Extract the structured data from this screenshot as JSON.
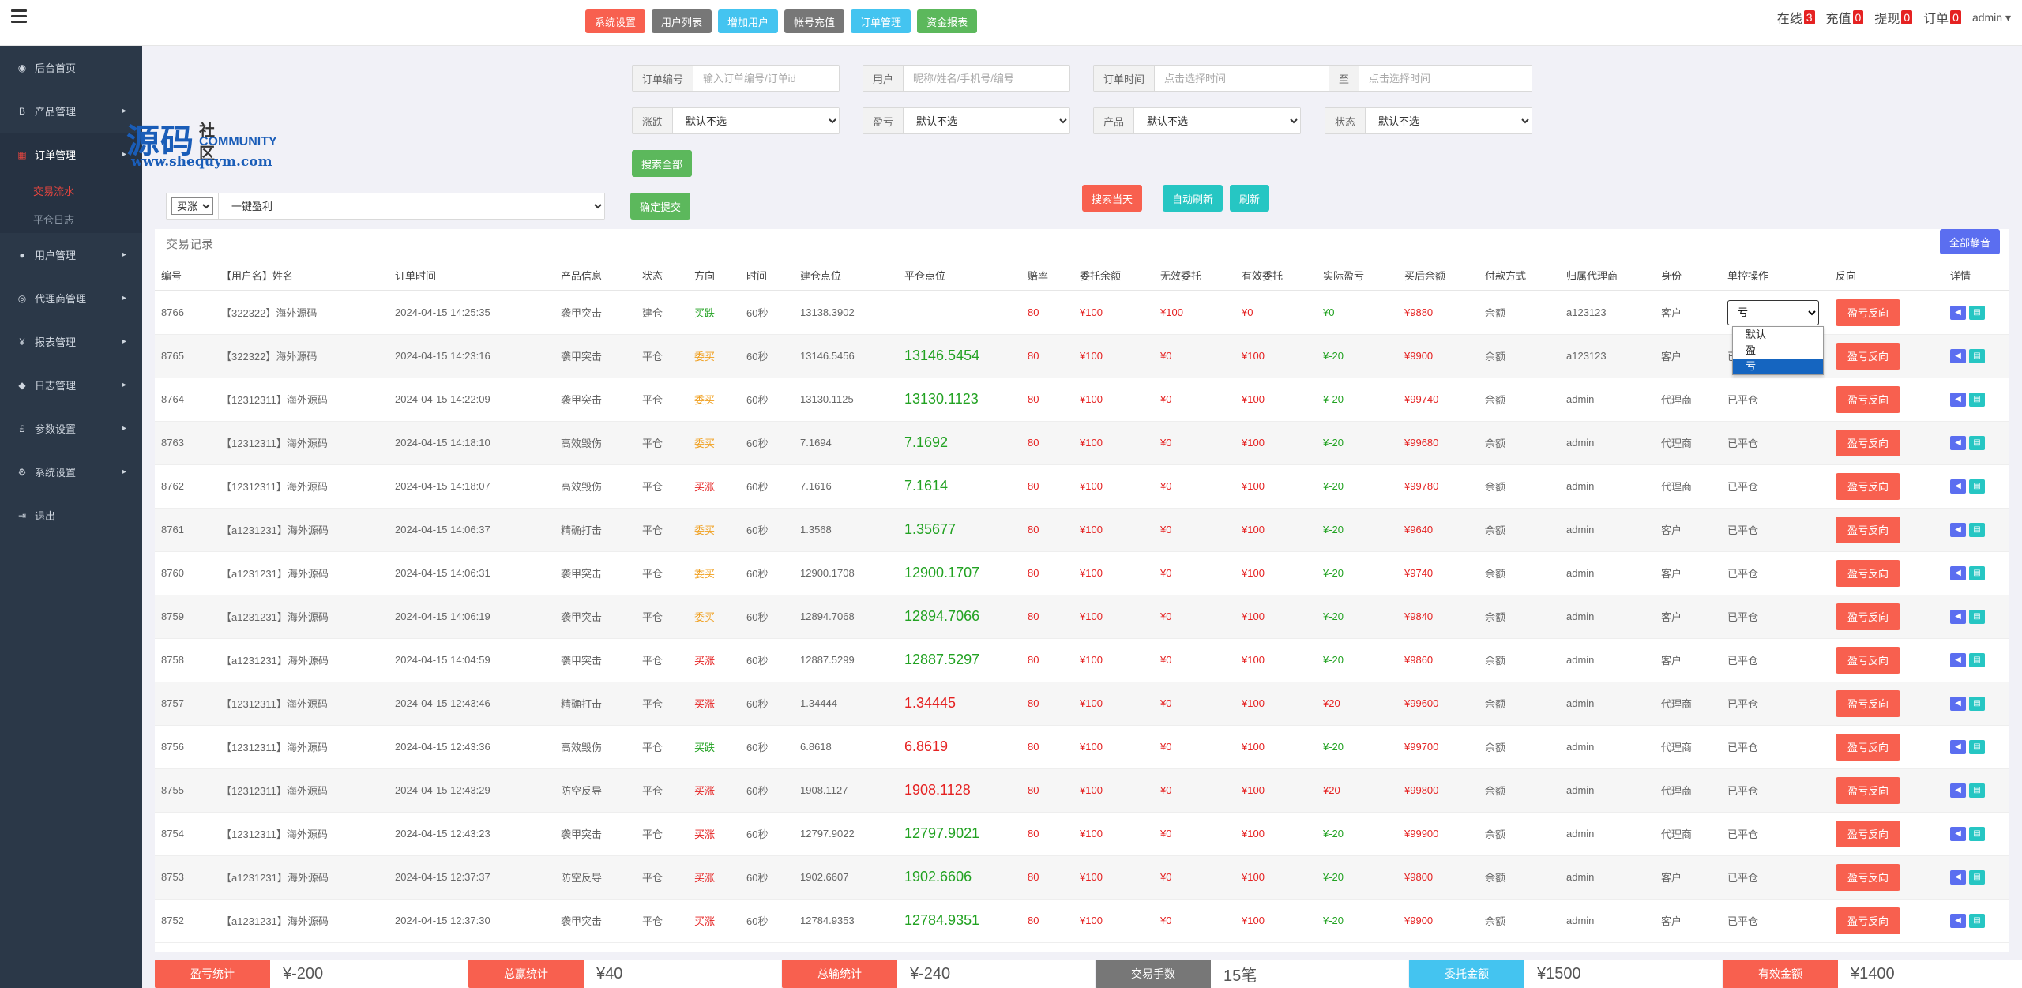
{
  "topnav": [
    {
      "label": "系统设置",
      "color": "#f8604f"
    },
    {
      "label": "用户列表",
      "color": "#777777"
    },
    {
      "label": "增加用户",
      "color": "#44c4f0"
    },
    {
      "label": "帐号充值",
      "color": "#777777"
    },
    {
      "label": "订单管理",
      "color": "#44c4f0"
    },
    {
      "label": "资金报表",
      "color": "#5cb85c"
    }
  ],
  "stats": [
    {
      "label": "在线",
      "count": "3"
    },
    {
      "label": "充值",
      "count": "0"
    },
    {
      "label": "提现",
      "count": "0"
    },
    {
      "label": "订单",
      "count": "0"
    }
  ],
  "user": "admin",
  "sidebar": {
    "items": [
      {
        "label": "后台首页",
        "icon": "dashboard-icon",
        "glyph": "◉",
        "chev": false
      },
      {
        "label": "产品管理",
        "icon": "bitcoin-icon",
        "glyph": "B",
        "chev": true
      },
      {
        "label": "订单管理",
        "icon": "orders-icon",
        "glyph": "▦",
        "chev": true,
        "active": true
      },
      {
        "label": "用户管理",
        "icon": "user-icon",
        "glyph": "●",
        "chev": true
      },
      {
        "label": "代理商管理",
        "icon": "agent-icon",
        "glyph": "◎",
        "chev": true
      },
      {
        "label": "报表管理",
        "icon": "yen-icon",
        "glyph": "¥",
        "chev": true
      },
      {
        "label": "日志管理",
        "icon": "tag-icon",
        "glyph": "◆",
        "chev": true
      },
      {
        "label": "参数设置",
        "icon": "pound-icon",
        "glyph": "£",
        "chev": true
      },
      {
        "label": "系统设置",
        "icon": "gears-icon",
        "glyph": "⚙",
        "chev": true
      },
      {
        "label": "退出",
        "icon": "logout-icon",
        "glyph": "⇥",
        "chev": false
      }
    ],
    "sub": [
      {
        "label": "交易流水",
        "current": true
      },
      {
        "label": "平仓日志",
        "current": false
      }
    ]
  },
  "watermark": {
    "big": "源码",
    "cn": "社区",
    "en": "COMMUNITY",
    "url": "www.shequym.com"
  },
  "filters": {
    "order_no": {
      "label": "订单编号",
      "placeholder": "输入订单编号/订单id"
    },
    "user": {
      "label": "用户",
      "placeholder": "昵称/姓名/手机号/编号"
    },
    "order_time": {
      "label": "订单时间",
      "placeholder": "点击选择时间"
    },
    "to": {
      "label": "至",
      "placeholder": "点击选择时间"
    },
    "rise_fall": {
      "label": "涨跌",
      "value": "默认不选"
    },
    "profit_loss": {
      "label": "盈亏",
      "value": "默认不选"
    },
    "product": {
      "label": "产品",
      "value": "默认不选"
    },
    "status": {
      "label": "状态",
      "value": "默认不选"
    },
    "search_all": "搜索全部",
    "search_today": "搜索当天",
    "auto_refresh": "自动刷新",
    "refresh": "刷新",
    "bulk_dir": "买涨",
    "bulk_action": "一键盈利",
    "confirm": "确定提交"
  },
  "panel": {
    "title": "交易记录",
    "mute_all": "全部静音",
    "columns": [
      "编号",
      "【用户名】姓名",
      "订单时间",
      "产品信息",
      "状态",
      "方向",
      "时间",
      "建仓点位",
      "平仓点位",
      "赔率",
      "委托余额",
      "无效委托",
      "有效委托",
      "实际盈亏",
      "买后余额",
      "付款方式",
      "归属代理商",
      "身份",
      "单控操作",
      "反向",
      "详情"
    ],
    "reverse_label": "盈亏反向",
    "rows": [
      {
        "id": "8766",
        "user": "【322322】海外源码",
        "time": "2024-04-15 14:25:35",
        "product": "袭甲突击",
        "status": "建仓",
        "dir": "买跌",
        "dirc": "c-green",
        "dur": "60秒",
        "open": "13138.3902",
        "close": "",
        "closec": "",
        "odds": "80",
        "entrust": "¥100",
        "invalid": "¥100",
        "valid": "¥0",
        "pnl": "¥0",
        "pnlc": "c-green",
        "after": "¥9880",
        "pay": "余额",
        "agent": "a123123",
        "role": "客户",
        "ctrl": "亏",
        "select": true
      },
      {
        "id": "8765",
        "user": "【322322】海外源码",
        "time": "2024-04-15 14:23:16",
        "product": "袭甲突击",
        "status": "平仓",
        "dir": "委买",
        "dirc": "c-orange",
        "dur": "60秒",
        "open": "13146.5456",
        "close": "13146.5454",
        "closec": "big-g",
        "odds": "80",
        "entrust": "¥100",
        "invalid": "¥0",
        "valid": "¥100",
        "pnl": "¥-20",
        "pnlc": "c-green",
        "after": "¥9900",
        "pay": "余额",
        "agent": "a123123",
        "role": "客户",
        "ctrl": "已平仓"
      },
      {
        "id": "8764",
        "user": "【12312311】海外源码",
        "time": "2024-04-15 14:22:09",
        "product": "袭甲突击",
        "status": "平仓",
        "dir": "委买",
        "dirc": "c-orange",
        "dur": "60秒",
        "open": "13130.1125",
        "close": "13130.1123",
        "closec": "big-g",
        "odds": "80",
        "entrust": "¥100",
        "invalid": "¥0",
        "valid": "¥100",
        "pnl": "¥-20",
        "pnlc": "c-green",
        "after": "¥99740",
        "pay": "余额",
        "agent": "admin",
        "role": "代理商",
        "ctrl": "已平仓"
      },
      {
        "id": "8763",
        "user": "【12312311】海外源码",
        "time": "2024-04-15 14:18:10",
        "product": "高效毁伤",
        "status": "平仓",
        "dir": "委买",
        "dirc": "c-orange",
        "dur": "60秒",
        "open": "7.1694",
        "close": "7.1692",
        "closec": "big-g",
        "odds": "80",
        "entrust": "¥100",
        "invalid": "¥0",
        "valid": "¥100",
        "pnl": "¥-20",
        "pnlc": "c-green",
        "after": "¥99680",
        "pay": "余额",
        "agent": "admin",
        "role": "代理商",
        "ctrl": "已平仓"
      },
      {
        "id": "8762",
        "user": "【12312311】海外源码",
        "time": "2024-04-15 14:18:07",
        "product": "高效毁伤",
        "status": "平仓",
        "dir": "买涨",
        "dirc": "c-red",
        "dur": "60秒",
        "open": "7.1616",
        "close": "7.1614",
        "closec": "big-g",
        "odds": "80",
        "entrust": "¥100",
        "invalid": "¥0",
        "valid": "¥100",
        "pnl": "¥-20",
        "pnlc": "c-green",
        "after": "¥99780",
        "pay": "余额",
        "agent": "admin",
        "role": "代理商",
        "ctrl": "已平仓"
      },
      {
        "id": "8761",
        "user": "【a1231231】海外源码",
        "time": "2024-04-15 14:06:37",
        "product": "精确打击",
        "status": "平仓",
        "dir": "委买",
        "dirc": "c-orange",
        "dur": "60秒",
        "open": "1.3568",
        "close": "1.35677",
        "closec": "big-g",
        "odds": "80",
        "entrust": "¥100",
        "invalid": "¥0",
        "valid": "¥100",
        "pnl": "¥-20",
        "pnlc": "c-green",
        "after": "¥9640",
        "pay": "余额",
        "agent": "admin",
        "role": "客户",
        "ctrl": "已平仓"
      },
      {
        "id": "8760",
        "user": "【a1231231】海外源码",
        "time": "2024-04-15 14:06:31",
        "product": "袭甲突击",
        "status": "平仓",
        "dir": "委买",
        "dirc": "c-orange",
        "dur": "60秒",
        "open": "12900.1708",
        "close": "12900.1707",
        "closec": "big-g",
        "odds": "80",
        "entrust": "¥100",
        "invalid": "¥0",
        "valid": "¥100",
        "pnl": "¥-20",
        "pnlc": "c-green",
        "after": "¥9740",
        "pay": "余额",
        "agent": "admin",
        "role": "客户",
        "ctrl": "已平仓"
      },
      {
        "id": "8759",
        "user": "【a1231231】海外源码",
        "time": "2024-04-15 14:06:19",
        "product": "袭甲突击",
        "status": "平仓",
        "dir": "委买",
        "dirc": "c-orange",
        "dur": "60秒",
        "open": "12894.7068",
        "close": "12894.7066",
        "closec": "big-g",
        "odds": "80",
        "entrust": "¥100",
        "invalid": "¥0",
        "valid": "¥100",
        "pnl": "¥-20",
        "pnlc": "c-green",
        "after": "¥9840",
        "pay": "余额",
        "agent": "admin",
        "role": "客户",
        "ctrl": "已平仓"
      },
      {
        "id": "8758",
        "user": "【a1231231】海外源码",
        "time": "2024-04-15 14:04:59",
        "product": "袭甲突击",
        "status": "平仓",
        "dir": "买涨",
        "dirc": "c-red",
        "dur": "60秒",
        "open": "12887.5299",
        "close": "12887.5297",
        "closec": "big-g",
        "odds": "80",
        "entrust": "¥100",
        "invalid": "¥0",
        "valid": "¥100",
        "pnl": "¥-20",
        "pnlc": "c-green",
        "after": "¥9860",
        "pay": "余额",
        "agent": "admin",
        "role": "客户",
        "ctrl": "已平仓"
      },
      {
        "id": "8757",
        "user": "【12312311】海外源码",
        "time": "2024-04-15 12:43:46",
        "product": "精确打击",
        "status": "平仓",
        "dir": "买涨",
        "dirc": "c-red",
        "dur": "60秒",
        "open": "1.34444",
        "close": "1.34445",
        "closec": "big-r",
        "odds": "80",
        "entrust": "¥100",
        "invalid": "¥0",
        "valid": "¥100",
        "pnl": "¥20",
        "pnlc": "c-red",
        "after": "¥99600",
        "pay": "余额",
        "agent": "admin",
        "role": "代理商",
        "ctrl": "已平仓"
      },
      {
        "id": "8756",
        "user": "【12312311】海外源码",
        "time": "2024-04-15 12:43:36",
        "product": "高效毁伤",
        "status": "平仓",
        "dir": "买跌",
        "dirc": "c-green",
        "dur": "60秒",
        "open": "6.8618",
        "close": "6.8619",
        "closec": "big-r",
        "odds": "80",
        "entrust": "¥100",
        "invalid": "¥0",
        "valid": "¥100",
        "pnl": "¥-20",
        "pnlc": "c-green",
        "after": "¥99700",
        "pay": "余额",
        "agent": "admin",
        "role": "代理商",
        "ctrl": "已平仓"
      },
      {
        "id": "8755",
        "user": "【12312311】海外源码",
        "time": "2024-04-15 12:43:29",
        "product": "防空反导",
        "status": "平仓",
        "dir": "买涨",
        "dirc": "c-red",
        "dur": "60秒",
        "open": "1908.1127",
        "close": "1908.1128",
        "closec": "big-r",
        "odds": "80",
        "entrust": "¥100",
        "invalid": "¥0",
        "valid": "¥100",
        "pnl": "¥20",
        "pnlc": "c-red",
        "after": "¥99800",
        "pay": "余额",
        "agent": "admin",
        "role": "代理商",
        "ctrl": "已平仓"
      },
      {
        "id": "8754",
        "user": "【12312311】海外源码",
        "time": "2024-04-15 12:43:23",
        "product": "袭甲突击",
        "status": "平仓",
        "dir": "买涨",
        "dirc": "c-red",
        "dur": "60秒",
        "open": "12797.9022",
        "close": "12797.9021",
        "closec": "big-g",
        "odds": "80",
        "entrust": "¥100",
        "invalid": "¥0",
        "valid": "¥100",
        "pnl": "¥-20",
        "pnlc": "c-green",
        "after": "¥99900",
        "pay": "余额",
        "agent": "admin",
        "role": "代理商",
        "ctrl": "已平仓"
      },
      {
        "id": "8753",
        "user": "【a1231231】海外源码",
        "time": "2024-04-15 12:37:37",
        "product": "防空反导",
        "status": "平仓",
        "dir": "买涨",
        "dirc": "c-red",
        "dur": "60秒",
        "open": "1902.6607",
        "close": "1902.6606",
        "closec": "big-g",
        "odds": "80",
        "entrust": "¥100",
        "invalid": "¥0",
        "valid": "¥100",
        "pnl": "¥-20",
        "pnlc": "c-green",
        "after": "¥9800",
        "pay": "余额",
        "agent": "admin",
        "role": "客户",
        "ctrl": "已平仓"
      },
      {
        "id": "8752",
        "user": "【a1231231】海外源码",
        "time": "2024-04-15 12:37:30",
        "product": "袭甲突击",
        "status": "平仓",
        "dir": "买涨",
        "dirc": "c-red",
        "dur": "60秒",
        "open": "12784.9353",
        "close": "12784.9351",
        "closec": "big-g",
        "odds": "80",
        "entrust": "¥100",
        "invalid": "¥0",
        "valid": "¥100",
        "pnl": "¥-20",
        "pnlc": "c-green",
        "after": "¥9900",
        "pay": "余额",
        "agent": "admin",
        "role": "客户",
        "ctrl": "已平仓"
      }
    ],
    "ctrl_options": [
      "默认",
      "盈",
      "亏"
    ],
    "ctrl_selected": "亏"
  },
  "summary": [
    {
      "label": "盈亏统计",
      "value": "¥-200",
      "color": "#f8604f"
    },
    {
      "label": "总赢统计",
      "value": "¥40",
      "color": "#f8604f"
    },
    {
      "label": "总输统计",
      "value": "¥-240",
      "color": "#f8604f"
    },
    {
      "label": "交易手数",
      "value": "15笔",
      "color": "#777777"
    },
    {
      "label": "委托金额",
      "value": "¥1500",
      "color": "#44c4f0"
    },
    {
      "label": "有效金额",
      "value": "¥1400",
      "color": "#f8604f"
    }
  ]
}
